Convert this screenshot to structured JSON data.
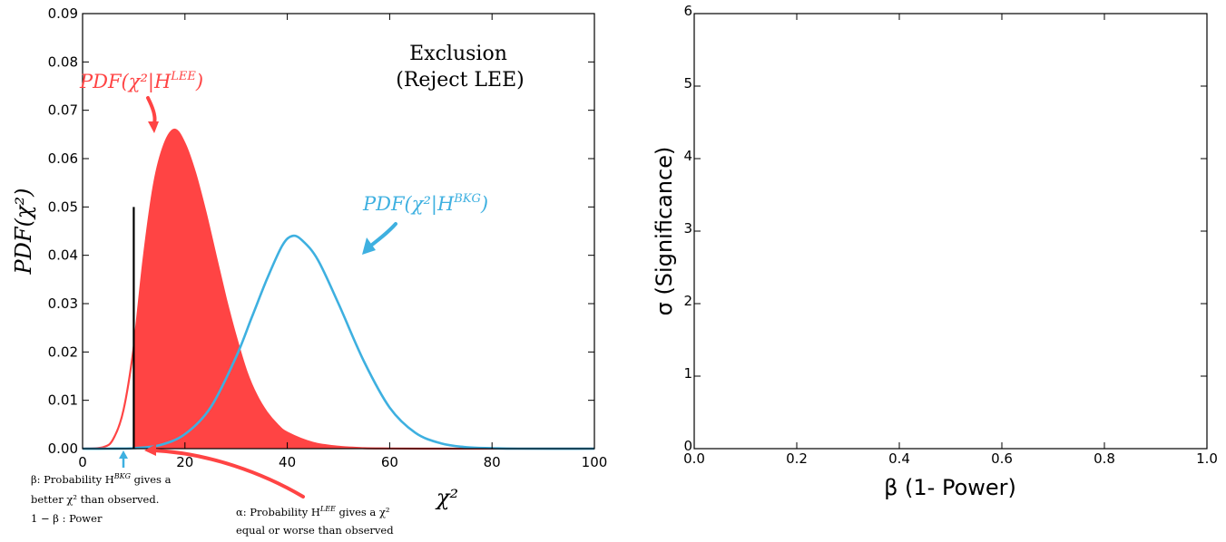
{
  "chart_data": [
    {
      "type": "area",
      "xlabel": "χ²",
      "ylabel": "PDF(χ²)",
      "xlim": [
        0,
        100
      ],
      "ylim": [
        0,
        0.09
      ],
      "x_ticks": [
        "0",
        "20",
        "40",
        "60",
        "80",
        "100"
      ],
      "y_ticks": [
        "0.00",
        "0.01",
        "0.02",
        "0.03",
        "0.04",
        "0.05",
        "0.06",
        "0.07",
        "0.08",
        "0.09"
      ],
      "grid": false,
      "observed_chi2": 10,
      "observed_line_top": 0.05,
      "series": [
        {
          "name": "PDF(χ²|H^LEE)",
          "color": "#ff4444",
          "filled_from_x": 10,
          "x": [
            0,
            4,
            6,
            8,
            10,
            12,
            14,
            16,
            18,
            20,
            22,
            24,
            26,
            28,
            30,
            32,
            34,
            36,
            38,
            40,
            45,
            50,
            55,
            60,
            70,
            80,
            100
          ],
          "y": [
            0,
            0.0003,
            0.002,
            0.008,
            0.021,
            0.04,
            0.055,
            0.063,
            0.066,
            0.063,
            0.057,
            0.049,
            0.04,
            0.031,
            0.023,
            0.016,
            0.011,
            0.0075,
            0.005,
            0.0033,
            0.0012,
            0.0004,
            0.0001,
            4e-05,
            0,
            0,
            0
          ]
        },
        {
          "name": "PDF(χ²|H^BKG)",
          "color": "#3eb0e0",
          "x": [
            0,
            5,
            10,
            15,
            20,
            25,
            30,
            33,
            36,
            39,
            41,
            43,
            46,
            50,
            55,
            60,
            65,
            70,
            75,
            80,
            85,
            100
          ],
          "y": [
            0,
            0,
            0.0001,
            0.0007,
            0.003,
            0.0085,
            0.019,
            0.027,
            0.035,
            0.042,
            0.044,
            0.043,
            0.039,
            0.03,
            0.018,
            0.0085,
            0.0033,
            0.0011,
            0.0003,
            0.0001,
            0,
            0
          ]
        }
      ],
      "annotations": {
        "title_line1": "Exclusion",
        "title_line2": "(Reject LEE)",
        "lee_label": "PDF(χ²|H",
        "lee_sup": "LEE",
        "bkg_label": "PDF(χ²|H",
        "bkg_sup": "BKG",
        "beta_note_line1": "β:  Probability H",
        "beta_note_sup": "BKG",
        "beta_note_line1_end": " gives a",
        "beta_note_line2": "better χ² than observed.",
        "beta_note_line3": "1 − β : Power",
        "alpha_note_line1": "α:  Probability H",
        "alpha_note_sup": "LEE",
        "alpha_note_line1_end": " gives a χ²",
        "alpha_note_line2": "equal or worse than observed"
      }
    },
    {
      "type": "line",
      "xlabel": "β (1- Power)",
      "ylabel": "σ (Significance)",
      "xlim": [
        0.0,
        1.0
      ],
      "ylim": [
        0,
        6
      ],
      "x_ticks": [
        "0.0",
        "0.2",
        "0.4",
        "0.6",
        "0.8",
        "1.0"
      ],
      "y_ticks": [
        "0",
        "1",
        "2",
        "3",
        "4",
        "5",
        "6"
      ],
      "grid": false,
      "series": []
    }
  ]
}
